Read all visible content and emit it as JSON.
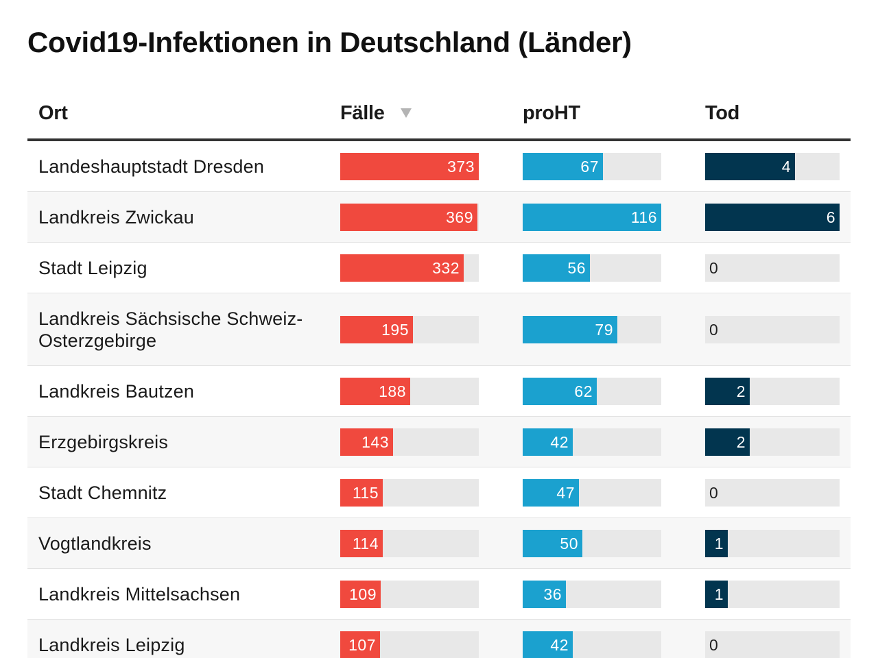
{
  "title": "Covid19-Infektionen in Deutschland (Länder)",
  "colors": {
    "faelle": "#f0493e",
    "proht": "#1ba1cf",
    "tod": "#02354f",
    "track": "#e8e8e8",
    "alt_row": "#f7f7f7",
    "label_outside_faelle": "#d23a2f",
    "label_outside_dark": "#222222"
  },
  "table": {
    "sort_icon": "triangle-down-icon",
    "sorted_by": "Fälle",
    "columns": [
      {
        "key": "ort",
        "label": "Ort"
      },
      {
        "key": "faelle",
        "label": "Fälle"
      },
      {
        "key": "proht",
        "label": "proHT"
      },
      {
        "key": "tod",
        "label": "Tod"
      }
    ]
  },
  "chart_data": {
    "type": "table",
    "title": "Covid19-Infektionen in Deutschland (Länder)",
    "columns": [
      "Ort",
      "Fälle",
      "proHT",
      "Tod"
    ],
    "scale_max": {
      "faelle": 373,
      "proht": 116,
      "tod": 6
    },
    "rows": [
      {
        "ort": "Landeshauptstadt Dresden",
        "faelle": 373,
        "proht": 67,
        "tod": 4
      },
      {
        "ort": "Landkreis Zwickau",
        "faelle": 369,
        "proht": 116,
        "tod": 6
      },
      {
        "ort": "Stadt Leipzig",
        "faelle": 332,
        "proht": 56,
        "tod": 0
      },
      {
        "ort": "Landkreis Sächsische Schweiz-Osterzgebirge",
        "faelle": 195,
        "proht": 79,
        "tod": 0
      },
      {
        "ort": "Landkreis Bautzen",
        "faelle": 188,
        "proht": 62,
        "tod": 2
      },
      {
        "ort": "Erzgebirgskreis",
        "faelle": 143,
        "proht": 42,
        "tod": 2
      },
      {
        "ort": "Stadt Chemnitz",
        "faelle": 115,
        "proht": 47,
        "tod": 0
      },
      {
        "ort": "Vogtlandkreis",
        "faelle": 114,
        "proht": 50,
        "tod": 1
      },
      {
        "ort": "Landkreis Mittelsachsen",
        "faelle": 109,
        "proht": 36,
        "tod": 1
      },
      {
        "ort": "Landkreis Leipzig",
        "faelle": 107,
        "proht": 42,
        "tod": 0
      }
    ]
  }
}
